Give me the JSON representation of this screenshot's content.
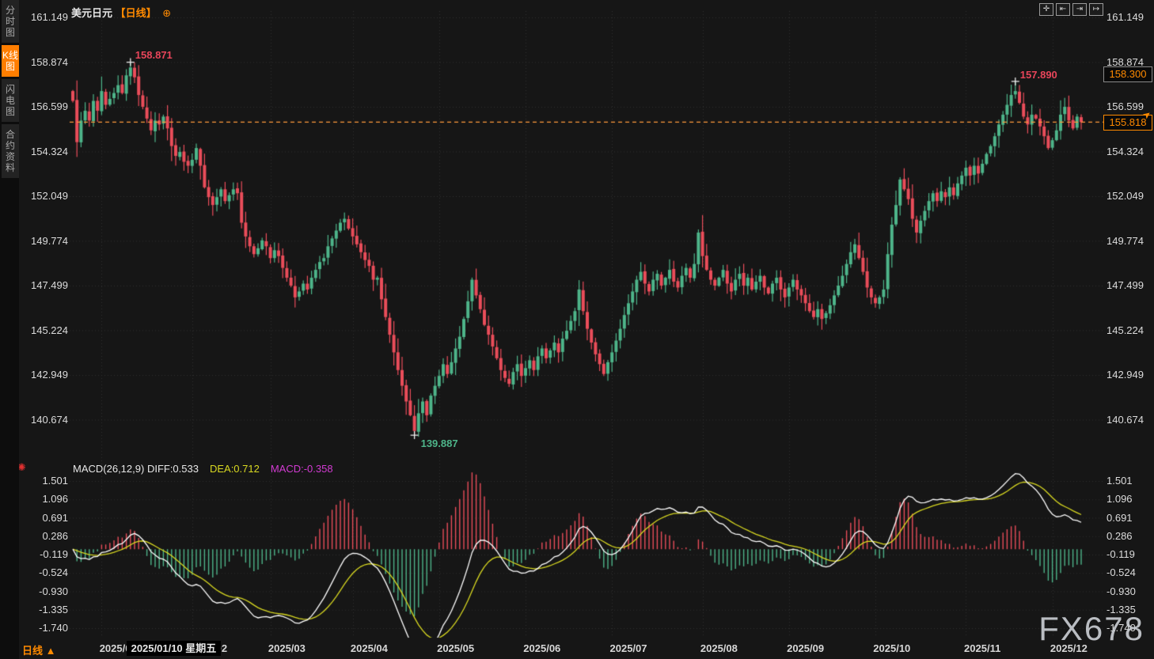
{
  "window": {
    "title": "美元日元 日线图",
    "bg": "#161616"
  },
  "sidebar": {
    "tabs": [
      {
        "label": "分时图",
        "active": false
      },
      {
        "label": "K线图",
        "active": true
      },
      {
        "label": "闪电图",
        "active": false
      },
      {
        "label": "合约资料",
        "active": false
      }
    ]
  },
  "header": {
    "symbol": "美元日元",
    "period_tag": "【日线】",
    "settings_glyph": "⊕"
  },
  "toolbar": {
    "buttons": [
      {
        "name": "pan-chart",
        "glyph": "✛"
      },
      {
        "name": "compress-left",
        "glyph": "⇤"
      },
      {
        "name": "compress-right",
        "glyph": "⇥"
      },
      {
        "name": "shift-right",
        "glyph": "↦"
      }
    ]
  },
  "price_axis": {
    "ticks": [
      "161.149",
      "158.874",
      "156.599",
      "154.324",
      "152.049",
      "149.774",
      "147.499",
      "145.224",
      "142.949",
      "140.674"
    ]
  },
  "macd_axis": {
    "ticks": [
      "1.501",
      "1.096",
      "0.691",
      "0.286",
      "-0.119",
      "-0.524",
      "-0.930",
      "-1.335",
      "-1.740"
    ]
  },
  "markers": {
    "upper": {
      "value": "158.300",
      "price": 158.3
    },
    "last": {
      "value": "155.818",
      "price": 155.818
    },
    "high1": {
      "label": "158.871",
      "day": 14,
      "price": 158.871,
      "color": "#e8455a"
    },
    "high2": {
      "label": "157.890",
      "day": 229,
      "price": 157.89,
      "color": "#e8455a"
    },
    "low": {
      "label": "139.887",
      "day": 83,
      "price": 139.887,
      "color": "#4eb58a"
    }
  },
  "macd_panel": {
    "title": "MACD(26,12,9)",
    "diff_label": "DIFF:0.533",
    "dea_label": "DEA:0.712",
    "macd_label": "MACD:-0.358"
  },
  "x_axis": {
    "months": [
      {
        "label": "2025/01",
        "day": 7
      },
      {
        "label": "2025/02",
        "day": 29
      },
      {
        "label": "2025/03",
        "day": 48
      },
      {
        "label": "2025/04",
        "day": 68
      },
      {
        "label": "2025/05",
        "day": 89
      },
      {
        "label": "2025/06",
        "day": 110
      },
      {
        "label": "2025/07",
        "day": 131
      },
      {
        "label": "2025/08",
        "day": 153
      },
      {
        "label": "2025/09",
        "day": 174
      },
      {
        "label": "2025/10",
        "day": 195
      },
      {
        "label": "2025/11",
        "day": 217
      },
      {
        "label": "2025/12",
        "day": 238
      }
    ],
    "tooltip": {
      "text": "2025/01/10 星期五",
      "day": 13
    }
  },
  "footer": {
    "period_label": "日线",
    "arrow": "▲"
  },
  "watermark": "FX678",
  "chart_data": {
    "type": "candlestick+macd",
    "symbol": "美元日元",
    "interval": "日线",
    "visible_high": 158.871,
    "visible_low": 139.887,
    "last_close": 155.818,
    "open_first": 157.4,
    "closes": [
      156.9,
      154.8,
      155.9,
      156.4,
      155.9,
      156.9,
      156.4,
      157.4,
      156.7,
      157.0,
      157.3,
      157.7,
      157.3,
      158.2,
      158.6,
      158.1,
      157.2,
      156.6,
      156.0,
      155.4,
      155.9,
      155.7,
      156.1,
      155.5,
      154.6,
      154.1,
      154.3,
      153.8,
      153.6,
      153.9,
      154.5,
      153.6,
      152.5,
      152.0,
      151.6,
      152.0,
      152.4,
      151.8,
      152.1,
      152.4,
      152.2,
      150.7,
      150.0,
      149.5,
      149.1,
      149.4,
      149.8,
      149.5,
      148.9,
      149.3,
      149.0,
      148.4,
      147.9,
      147.5,
      146.9,
      147.2,
      147.6,
      147.3,
      147.9,
      148.3,
      148.7,
      148.9,
      149.5,
      149.9,
      150.3,
      150.7,
      150.9,
      150.4,
      150.0,
      149.6,
      149.2,
      148.8,
      148.5,
      147.8,
      147.9,
      146.8,
      145.9,
      145.0,
      144.1,
      143.2,
      142.4,
      141.6,
      140.9,
      140.1,
      141.0,
      141.6,
      140.9,
      141.9,
      142.4,
      142.9,
      143.5,
      143.0,
      143.6,
      144.3,
      144.9,
      145.8,
      146.7,
      147.8,
      147.0,
      146.3,
      145.5,
      145.0,
      144.4,
      143.8,
      143.2,
      142.8,
      142.5,
      143.1,
      143.5,
      142.9,
      143.3,
      143.7,
      143.2,
      143.9,
      144.3,
      143.8,
      144.2,
      144.6,
      144.1,
      144.8,
      145.2,
      145.7,
      146.2,
      147.3,
      146.2,
      145.3,
      144.6,
      144.0,
      143.5,
      143.0,
      143.6,
      144.1,
      144.7,
      145.3,
      146.0,
      146.6,
      147.2,
      147.8,
      148.2,
      147.6,
      147.2,
      147.8,
      148.1,
      147.5,
      147.9,
      148.3,
      147.7,
      147.4,
      148.0,
      148.4,
      147.9,
      148.6,
      150.2,
      149.0,
      148.3,
      147.8,
      147.5,
      147.9,
      148.3,
      147.6,
      147.2,
      147.8,
      148.1,
      147.5,
      147.9,
      147.3,
      147.7,
      148.0,
      147.4,
      147.1,
      147.6,
      147.9,
      147.3,
      146.9,
      147.4,
      147.8,
      147.3,
      147.0,
      146.6,
      146.2,
      145.9,
      146.3,
      145.8,
      146.1,
      146.5,
      147.0,
      147.5,
      148.0,
      148.6,
      149.2,
      149.6,
      148.9,
      148.2,
      147.4,
      146.9,
      146.6,
      146.9,
      147.3,
      149.1,
      150.6,
      151.6,
      152.9,
      152.4,
      151.9,
      150.9,
      150.2,
      150.8,
      151.3,
      151.8,
      152.2,
      151.8,
      152.3,
      152.0,
      152.5,
      152.1,
      152.7,
      153.1,
      153.5,
      153.1,
      153.6,
      153.2,
      153.7,
      154.2,
      154.6,
      155.1,
      155.7,
      156.2,
      156.7,
      157.2,
      157.4,
      156.8,
      156.1,
      155.7,
      156.2,
      156.0,
      155.6,
      155.1,
      154.5,
      154.9,
      155.4,
      156.2,
      156.6,
      155.9,
      155.5,
      156.1,
      155.818
    ],
    "key_points": {
      "high1": {
        "day": 14,
        "high": 158.871
      },
      "low": {
        "day": 83,
        "low": 139.887
      },
      "high2": {
        "day": 229,
        "high": 157.89
      },
      "last": {
        "day": 245,
        "close": 155.818
      }
    },
    "macd": {
      "params": [
        26,
        12,
        9
      ],
      "diff": 0.533,
      "dea": 0.712,
      "macd": -0.358
    },
    "colors": {
      "up": "#4eb58a",
      "down": "#ea4d5a",
      "hist_pos": "#ea4d5a",
      "hist_neg": "#4eb58a",
      "dif_line": "#ffffff",
      "dea_line": "#d9d921",
      "grid": "#303030",
      "last_price_line": "#ff9a3c",
      "accent": "#ff8a00"
    }
  }
}
